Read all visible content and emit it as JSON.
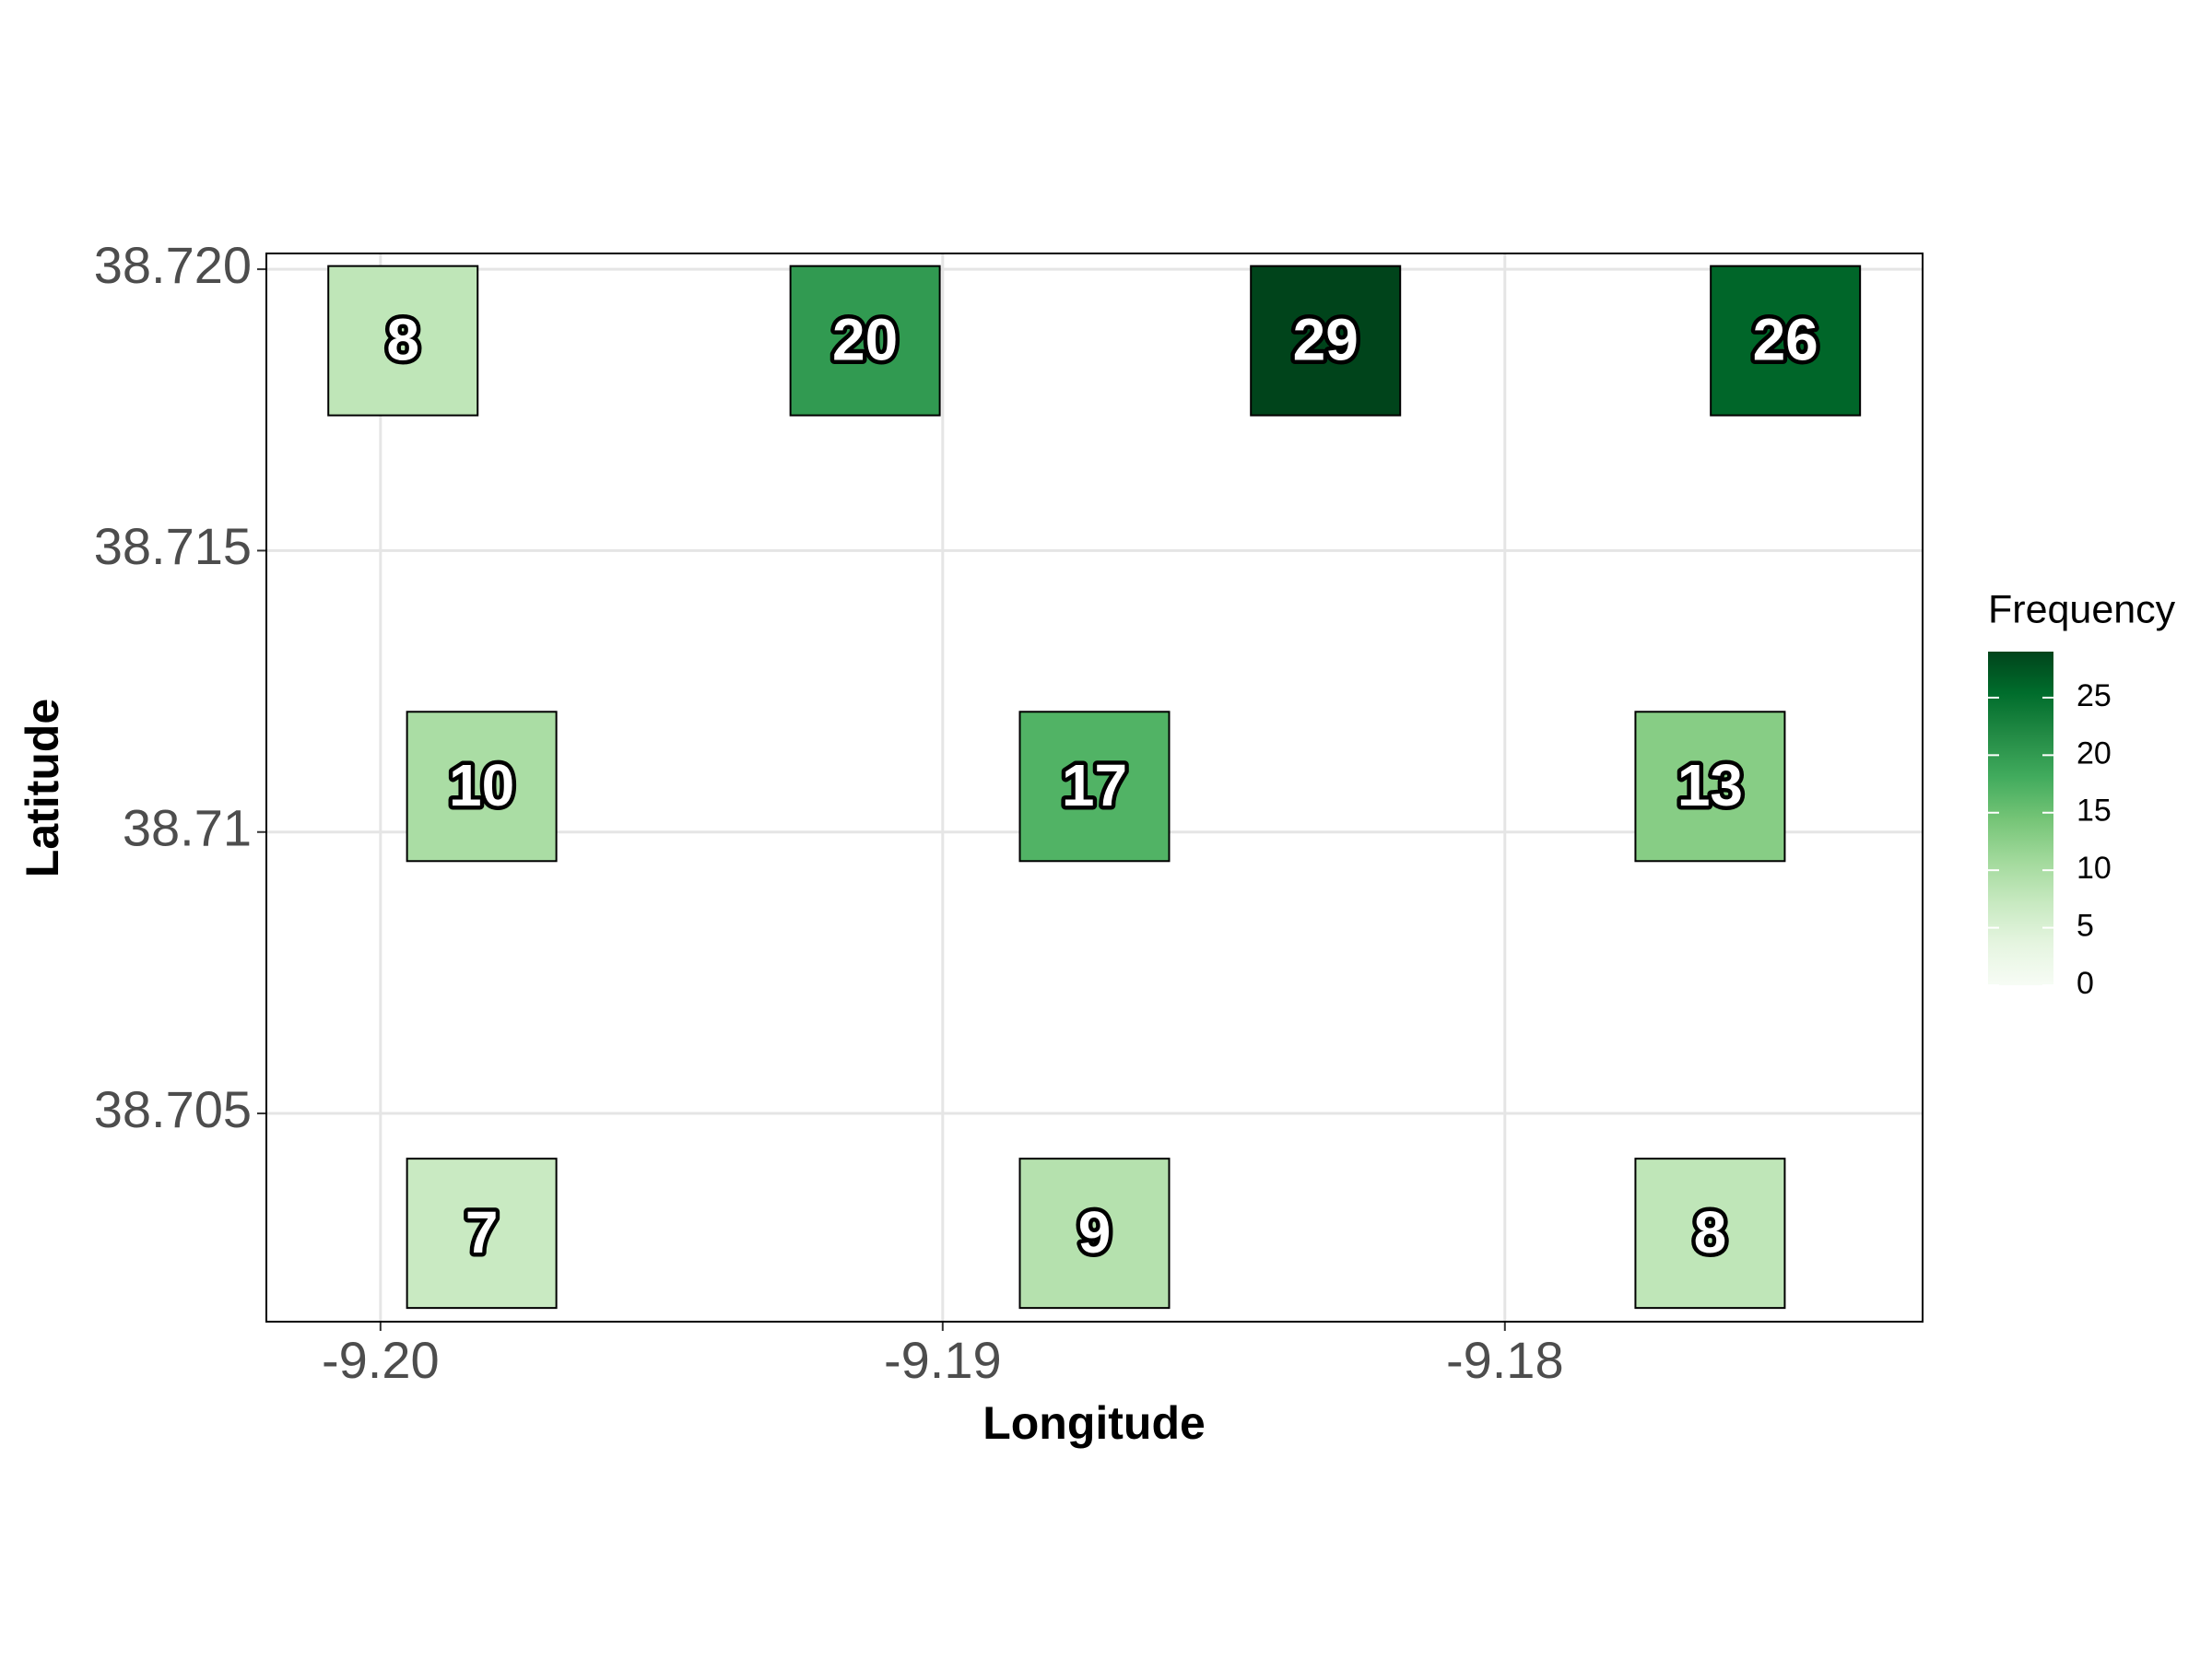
{
  "chart_data": {
    "type": "tile",
    "x_label": "Longitude",
    "y_label": "Latitude",
    "x": [
      -9.1996,
      -9.19138,
      -9.18319,
      -9.17501,
      -9.1982,
      -9.1873,
      -9.17635,
      -9.1982,
      -9.1873,
      -9.17635
    ],
    "y": [
      38.71873,
      38.71873,
      38.71873,
      38.71873,
      38.71081,
      38.71081,
      38.71081,
      38.70287,
      38.70287,
      38.70287
    ],
    "values": [
      8,
      20,
      29,
      26,
      10,
      17,
      13,
      7,
      9,
      8
    ],
    "xlim": [
      -9.20203,
      -9.17257
    ],
    "ylim": [
      38.7013,
      38.72028
    ],
    "xticks": [
      {
        "value": -9.2,
        "label": "-9.20"
      },
      -9.19,
      -9.18
    ],
    "yticks": [
      38.705,
      38.71,
      38.715,
      {
        "value": 38.72,
        "label": "38.720"
      }
    ],
    "grid": true,
    "legend": {
      "title": "Frequency",
      "position": "right",
      "clim": [
        0,
        29
      ],
      "ticks": [
        0,
        5,
        10,
        15,
        20,
        25
      ],
      "colorscale": [
        "#f7fcf5",
        "#e5f5e0",
        "#c7e9c0",
        "#a1d99b",
        "#74c476",
        "#41ab5d",
        "#238b45",
        "#006d2c",
        "#00441b"
      ]
    }
  }
}
